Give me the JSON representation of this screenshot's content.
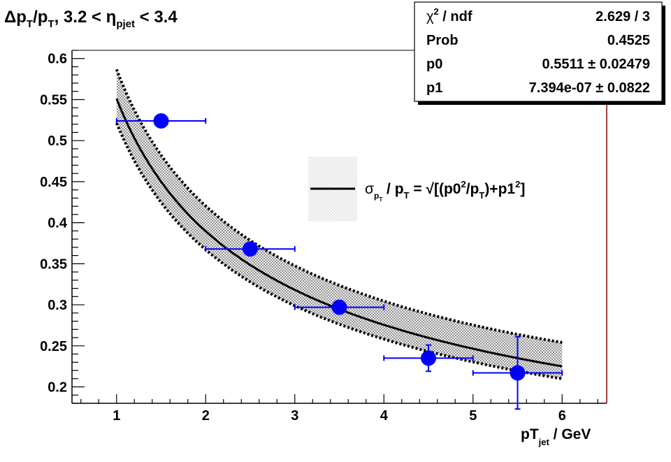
{
  "title": {
    "delta": "Δ",
    "p1": "p",
    "sub1": "T",
    "slash": "/p",
    "sub2": "T",
    "range": ", 3.2 < η",
    "sub3": "pjet",
    "end": " < 3.4"
  },
  "stats": {
    "rows": [
      {
        "label_base": "χ",
        "label_sup": "2",
        "label_rest": " / ndf",
        "value": "2.629 / 3"
      },
      {
        "label_base": "Prob",
        "label_sup": "",
        "label_rest": "",
        "value": "0.4525"
      },
      {
        "label_base": "p0",
        "label_sup": "",
        "label_rest": "",
        "value": "0.5511 ± 0.02479"
      },
      {
        "label_base": "p1",
        "label_sup": "",
        "label_rest": "",
        "value": "7.394e-07 ± 0.0822"
      }
    ]
  },
  "legend": {
    "sigma": "σ",
    "sub_p": "p",
    "sub_T": "T",
    "mid": " / p",
    "mid_sub": "T",
    "eq": " = √[(p0",
    "sup2a": "2",
    "div": "/p",
    "div_sub": "T",
    "plus": ")+p1",
    "sup2b": "2",
    "close": "]"
  },
  "xaxis": {
    "label_main": "pT",
    "label_sub": "jet",
    "label_unit": " / GeV"
  },
  "colors": {
    "marker": "#0000ff",
    "curve": "#000000",
    "frame_right": "#8b0000"
  },
  "chart_data": {
    "type": "scatter",
    "title": "Δp_T/p_T, 3.2 < η_pjet < 3.4",
    "xlabel": "pT_jet / GeV",
    "ylabel": "",
    "xlim": [
      0.5,
      6.5
    ],
    "ylim": [
      0.18,
      0.61
    ],
    "xticks": [
      1,
      2,
      3,
      4,
      5,
      6
    ],
    "yticks": [
      0.2,
      0.25,
      0.3,
      0.35,
      0.4,
      0.45,
      0.5,
      0.55,
      0.6
    ],
    "ytick_labels": [
      "0.2",
      "0.25",
      "0.3",
      "0.35",
      "0.4",
      "0.45",
      "0.5",
      "0.55",
      "0.6"
    ],
    "grid": false,
    "legend_position": "right-center",
    "series": [
      {
        "kind": "points",
        "x": [
          1.5,
          2.5,
          3.5,
          4.5,
          5.5
        ],
        "y": [
          0.524,
          0.368,
          0.297,
          0.235,
          0.217
        ],
        "xerr": [
          0.5,
          0.5,
          0.5,
          0.5,
          0.5
        ],
        "yerr": [
          0.0,
          0.0,
          0.0,
          0.016,
          0.044
        ]
      },
      {
        "kind": "fit",
        "name": "σ_pT / p_T = √[(p0²/p_T)+p1²]",
        "p0": 0.5511,
        "p0_err": 0.02479,
        "p1": 7.394e-07,
        "p1_err": 0.0822,
        "x_range": [
          1.0,
          6.0
        ]
      }
    ]
  }
}
